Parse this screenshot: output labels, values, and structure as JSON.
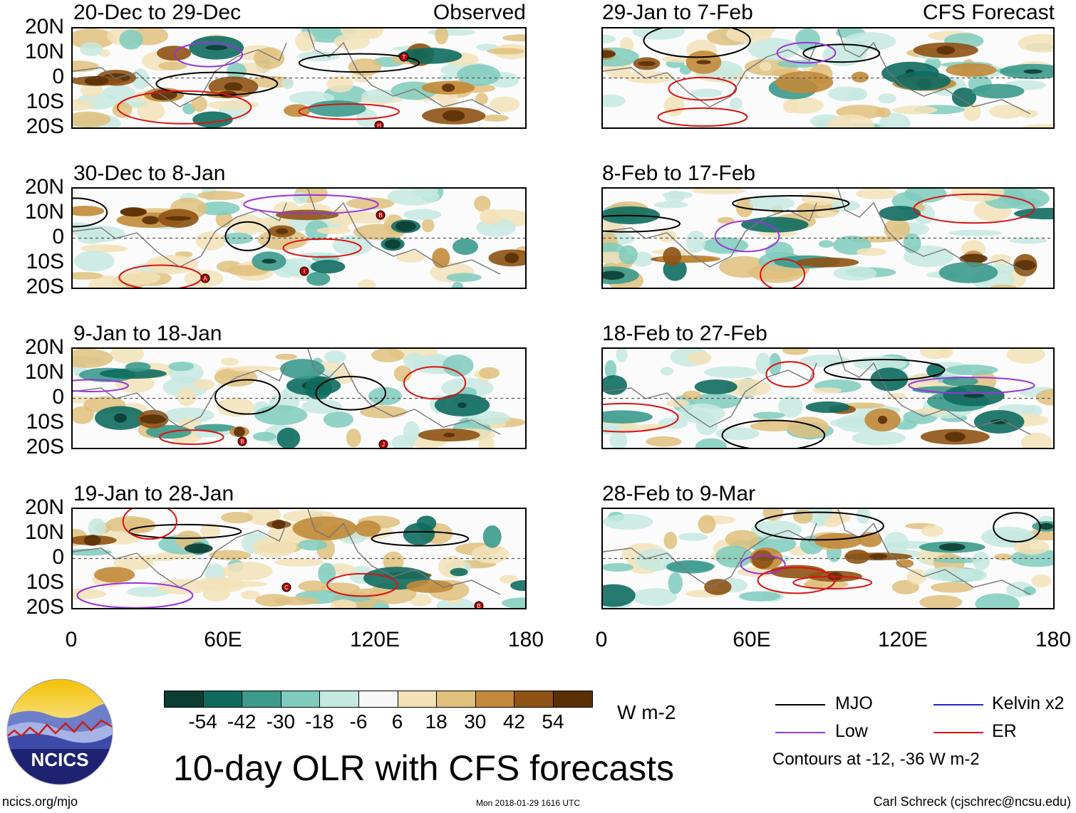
{
  "left_tag": "Observed",
  "right_tag": "CFS Forecast",
  "lat_labels": [
    "20N",
    "10N",
    "0",
    "10S",
    "20S"
  ],
  "lon_labels": [
    "0",
    "60E",
    "120E",
    "180"
  ],
  "panels_left": [
    {
      "title": "20-Dec to 29-Dec"
    },
    {
      "title": "30-Dec to 8-Jan"
    },
    {
      "title": "9-Jan to 18-Jan"
    },
    {
      "title": "19-Jan to 28-Jan"
    }
  ],
  "panels_right": [
    {
      "title": "29-Jan to 7-Feb"
    },
    {
      "title": "8-Feb to 17-Feb"
    },
    {
      "title": "18-Feb to 27-Feb"
    },
    {
      "title": "28-Feb to 9-Mar"
    }
  ],
  "colorbar": {
    "colors": [
      "#0b3d33",
      "#0e6b5f",
      "#3b9a8c",
      "#7fcbbd",
      "#c5e9e0",
      "#f7f7f7",
      "#f3e2b8",
      "#dfc07c",
      "#c2893a",
      "#8e5214",
      "#5a3006"
    ],
    "labels": [
      "-54",
      "-42",
      "-30",
      "-18",
      "-6",
      "6",
      "18",
      "30",
      "42",
      "54"
    ],
    "units": "W m-2"
  },
  "title": "10-day OLR with CFS forecasts",
  "logo_text": "NCICS",
  "legend": {
    "items": [
      {
        "label": "MJO",
        "color": "#000000"
      },
      {
        "label": "Kelvin x2",
        "color": "#2222cc"
      },
      {
        "label": "Low",
        "color": "#9933dd"
      },
      {
        "label": "ER",
        "color": "#dd1111"
      }
    ],
    "note": "Contours at -12, -36 W m-2"
  },
  "footer": {
    "url": "ncics.org/mjo",
    "timestamp": "Mon 2018-01-29 1616 UTC",
    "author": "Carl Schreck (cjschrec@ncsu.edu)"
  },
  "storm_markers_left": [
    [
      "T",
      "H"
    ],
    [
      "B",
      "A",
      "I"
    ],
    [
      "B",
      "J"
    ],
    [
      "C",
      "B"
    ]
  ]
}
